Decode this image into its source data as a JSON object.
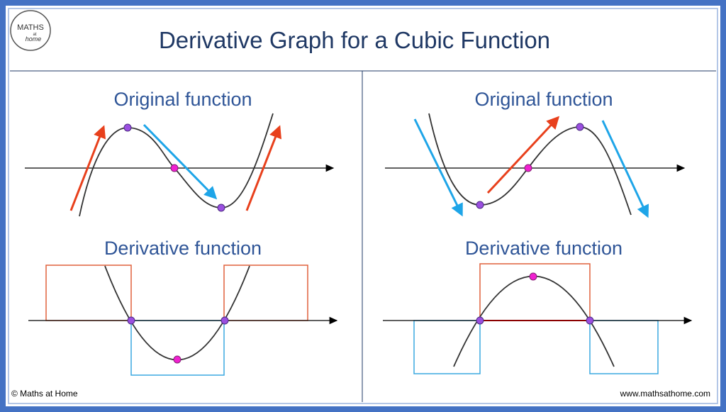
{
  "header": {
    "title": "Derivative Graph for a Cubic Function",
    "logo": {
      "line1": "MATHS",
      "line2": "at",
      "line3": "home"
    }
  },
  "panels": [
    {
      "original_label": "Original function",
      "derivative_label": "Derivative function"
    },
    {
      "original_label": "Original function",
      "derivative_label": "Derivative function"
    }
  ],
  "footer": {
    "copyright": "© Maths at Home",
    "website": "www.mathsathome.com"
  }
}
